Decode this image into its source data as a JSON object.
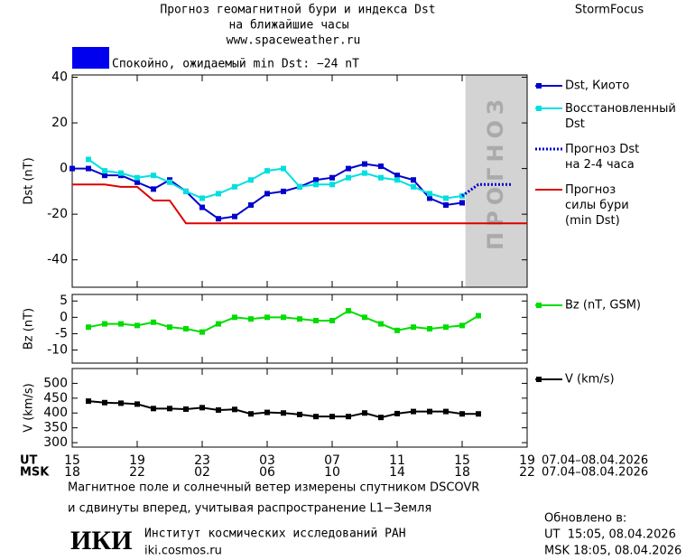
{
  "header": {
    "title": "Прогноз геомагнитной бури и индекса Dst",
    "subtitle": "на ближайшие часы",
    "url": "www.spaceweather.ru",
    "brand": "StormFocus"
  },
  "status": {
    "text": "Спокойно, ожидаемый min Dst: −24 nT",
    "color": "#0000ee"
  },
  "chart_data": [
    {
      "type": "line",
      "y_label": "Dst (nT)",
      "xlim": [
        0,
        28
      ],
      "ylim": [
        -52,
        41
      ],
      "yticks": [
        40,
        20,
        0,
        -20,
        -40
      ],
      "shade": {
        "x": [
          24.2,
          28
        ],
        "label": "ПРОГНОЗ",
        "color": "#d3d3d3"
      },
      "series": [
        {
          "name": "Dst, Киото",
          "color": "#0000cc",
          "marker": "square",
          "x": [
            0,
            1,
            2,
            3,
            4,
            5,
            6,
            7,
            8,
            9,
            10,
            11,
            12,
            13,
            14,
            15,
            16,
            17,
            18,
            19,
            20,
            21,
            22,
            23,
            24
          ],
          "values": [
            0,
            0,
            -3,
            -3,
            -6,
            -9,
            -5,
            -10,
            -17,
            -22,
            -21,
            -16,
            -11,
            -10,
            -8,
            -5,
            -4,
            0,
            2,
            1,
            -3,
            -5,
            -13,
            -16,
            -15
          ]
        },
        {
          "name": "Восстановленный\nDst",
          "color": "#00e0e0",
          "marker": "square",
          "x": [
            1,
            2,
            3,
            4,
            5,
            6,
            7,
            8,
            9,
            10,
            11,
            12,
            13,
            14,
            15,
            16,
            17,
            18,
            19,
            20,
            21,
            22,
            23,
            24
          ],
          "values": [
            4,
            -1,
            -2,
            -4,
            -3,
            -6,
            -10,
            -13,
            -11,
            -8,
            -5,
            -1,
            0,
            -8,
            -7,
            -7,
            -4,
            -2,
            -4,
            -5,
            -8,
            -11,
            -13,
            -12
          ]
        },
        {
          "name": "Прогноз Dst\nна 2-4 часа",
          "color": "#0000cc",
          "dash": true,
          "x": [
            24,
            25,
            26,
            27
          ],
          "values": [
            -12,
            -7,
            -7,
            -7
          ]
        },
        {
          "name": "Прогноз\nсилы бури\n(min Dst)",
          "color": "#dd0000",
          "x": [
            0,
            2,
            3,
            4,
            5,
            6,
            7,
            28
          ],
          "values": [
            -7,
            -7,
            -8,
            -8,
            -14,
            -14,
            -24,
            -24
          ]
        }
      ]
    },
    {
      "type": "line",
      "y_label": "Bz (nT)",
      "xlim": [
        0,
        28
      ],
      "ylim": [
        -14,
        7
      ],
      "yticks": [
        5,
        0,
        -5,
        -10
      ],
      "series": [
        {
          "name": "Bz (nT, GSM)",
          "color": "#00dd00",
          "marker": "square",
          "x": [
            1,
            2,
            3,
            4,
            5,
            6,
            7,
            8,
            9,
            10,
            11,
            12,
            13,
            14,
            15,
            16,
            17,
            18,
            19,
            20,
            21,
            22,
            23,
            24,
            25
          ],
          "values": [
            -3,
            -2,
            -2,
            -2.5,
            -1.5,
            -3,
            -3.5,
            -4.5,
            -2,
            0,
            -0.5,
            0,
            0,
            -0.5,
            -1,
            -1,
            2,
            0,
            -2,
            -4,
            -3,
            -3.5,
            -3,
            -2.5,
            0.5
          ]
        }
      ]
    },
    {
      "type": "line",
      "y_label": "V (km/s)",
      "xlim": [
        0,
        28
      ],
      "ylim": [
        285,
        550
      ],
      "yticks": [
        500,
        450,
        400,
        350,
        300
      ],
      "xticks": [
        {
          "value": 0,
          "label": "15"
        },
        {
          "value": 4,
          "label": "19"
        },
        {
          "value": 8,
          "label": "23"
        },
        {
          "value": 12,
          "label": "03"
        },
        {
          "value": 16,
          "label": "07"
        },
        {
          "value": 20,
          "label": "11"
        },
        {
          "value": 24,
          "label": "15"
        },
        {
          "value": 28,
          "label": "19"
        }
      ],
      "x2ticks": [
        {
          "value": 0,
          "label": "18"
        },
        {
          "value": 4,
          "label": "22"
        },
        {
          "value": 8,
          "label": "02"
        },
        {
          "value": 12,
          "label": "06"
        },
        {
          "value": 16,
          "label": "10"
        },
        {
          "value": 20,
          "label": "14"
        },
        {
          "value": 24,
          "label": "18"
        },
        {
          "value": 28,
          "label": "22"
        }
      ],
      "series": [
        {
          "name": "V (km/s)",
          "color": "#000000",
          "marker": "square",
          "x": [
            1,
            2,
            3,
            4,
            5,
            6,
            7,
            8,
            9,
            10,
            11,
            12,
            13,
            14,
            15,
            16,
            17,
            18,
            19,
            20,
            21,
            22,
            23,
            24,
            25
          ],
          "values": [
            440,
            435,
            433,
            430,
            415,
            415,
            413,
            418,
            410,
            412,
            397,
            402,
            400,
            395,
            388,
            388,
            388,
            400,
            385,
            398,
            405,
            405,
            405,
            397,
            397
          ]
        }
      ]
    }
  ],
  "time_axis": {
    "row_labels": [
      "UT",
      "MSK"
    ],
    "dates": [
      "07.04–08.04.2026",
      "07.04–08.04.2026"
    ]
  },
  "footer": {
    "note": [
      "Магнитное поле и солнечный ветер измерены спутником DSCOVR",
      "и сдвинуты вперед, учитывая распространение L1−Земля"
    ],
    "logo": "ИКИ",
    "institute": "Институт космических исследований РАН",
    "site": "iki.cosmos.ru",
    "updated_label": "Обновлено в:",
    "updated": [
      "UT  15:05, 08.04.2026",
      "MSK 18:05, 08.04.2026"
    ]
  }
}
